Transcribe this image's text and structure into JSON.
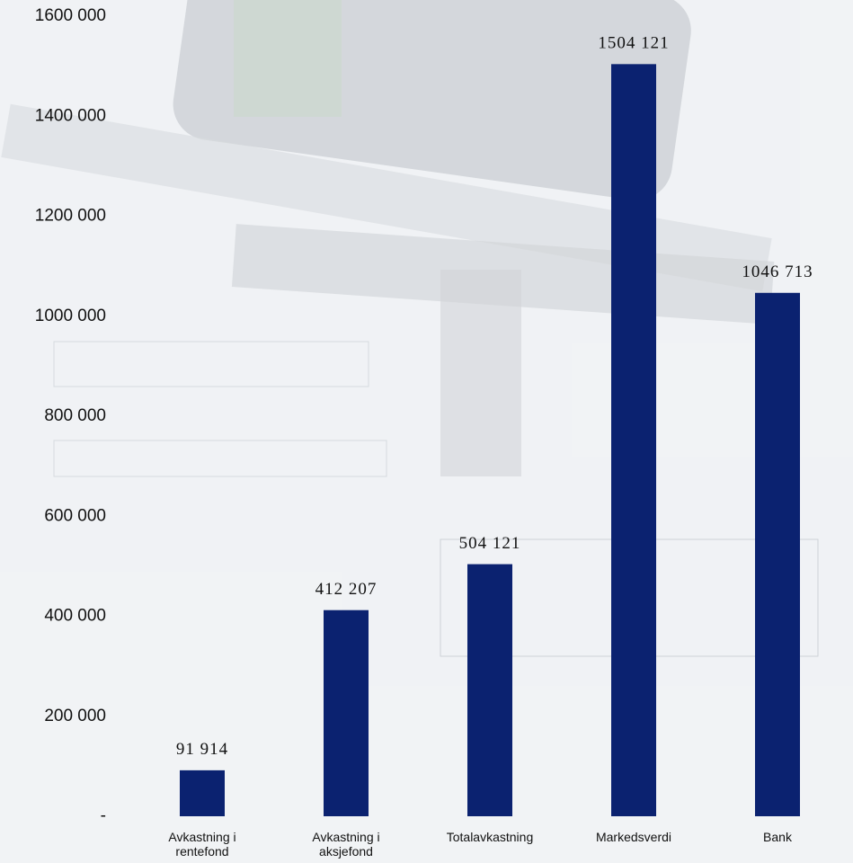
{
  "chart_data": {
    "type": "bar",
    "categories": [
      "Avkastning i rentefond",
      "Avkastning i aksjefond",
      "Totalavkastning",
      "Markedsverdi",
      "Bank"
    ],
    "values": [
      91914,
      412207,
      504121,
      1504121,
      1046713
    ],
    "value_labels": [
      "91 914",
      "412 207",
      "504 121",
      "1504 121",
      "1046 713"
    ],
    "color": "#0b2270",
    "ylim": [
      0,
      1600000
    ],
    "yticks": [
      {
        "value": 0,
        "label": "-"
      },
      {
        "value": 200000,
        "label": "200 000"
      },
      {
        "value": 400000,
        "label": "400 000"
      },
      {
        "value": 600000,
        "label": "600 000"
      },
      {
        "value": 800000,
        "label": "800 000"
      },
      {
        "value": 1000000,
        "label": "1000 000"
      },
      {
        "value": 1200000,
        "label": "1200 000"
      },
      {
        "value": 1400000,
        "label": "1400 000"
      },
      {
        "value": 1600000,
        "label": "1600 000"
      }
    ],
    "grid": false
  }
}
